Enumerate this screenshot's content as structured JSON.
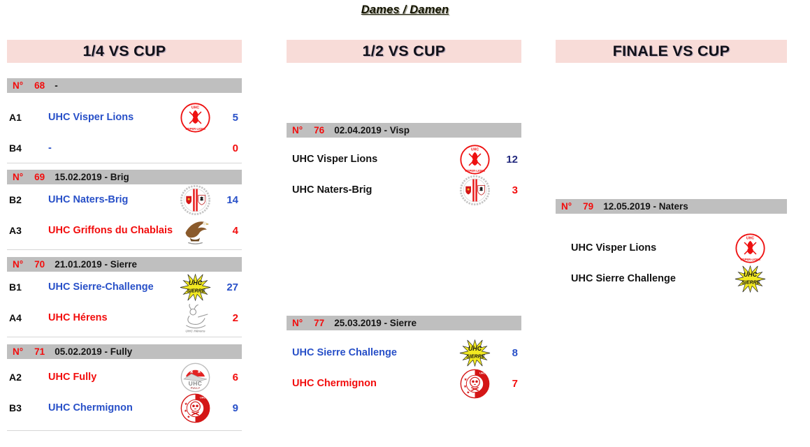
{
  "title": "Dames / Damen",
  "colors": {
    "header_bg": "#f8dcd8",
    "bar_bg": "#bfbfbf",
    "blue": "#2850c8",
    "red": "#f20d0d",
    "navy": "#232a7e"
  },
  "columns": [
    {
      "header": "1/4 VS CUP",
      "matches": [
        {
          "label": "N°",
          "number": "68",
          "info": "-",
          "rows": [
            {
              "seed": "A1",
              "team": "UHC Visper Lions",
              "team_color": "blue",
              "logo": "visper-lions",
              "score": "5",
              "score_color": "blue"
            },
            {
              "seed": "B4",
              "team": "-",
              "team_color": "blue",
              "logo": "",
              "score": "0",
              "score_color": "red"
            }
          ]
        },
        {
          "label": "N°",
          "number": "69",
          "info": "15.02.2019 - Brig",
          "rows": [
            {
              "seed": "B2",
              "team": "UHC Naters-Brig",
              "team_color": "blue",
              "logo": "naters-brig",
              "score": "14",
              "score_color": "blue"
            },
            {
              "seed": "A3",
              "team": "UHC Griffons du Chablais",
              "team_color": "red",
              "logo": "griffons-du-chablais",
              "score": "4",
              "score_color": "red"
            }
          ]
        },
        {
          "label": "N°",
          "number": "70",
          "info": "21.01.2019 - Sierre",
          "rows": [
            {
              "seed": "B1",
              "team": "UHC Sierre-Challenge",
              "team_color": "blue",
              "logo": "sierre-challenge",
              "score": "27",
              "score_color": "blue"
            },
            {
              "seed": "A4",
              "team": "UHC Hérens",
              "team_color": "red",
              "logo": "herens",
              "score": "2",
              "score_color": "red"
            }
          ]
        },
        {
          "label": "N°",
          "number": "71",
          "info": "05.02.2019 - Fully",
          "rows": [
            {
              "seed": "A2",
              "team": "UHC Fully",
              "team_color": "red",
              "logo": "fully",
              "score": "6",
              "score_color": "red"
            },
            {
              "seed": "B3",
              "team": "UHC Chermignon",
              "team_color": "blue",
              "logo": "chermignon",
              "score": "9",
              "score_color": "blue"
            }
          ]
        }
      ]
    },
    {
      "header": "1/2 VS CUP",
      "matches": [
        {
          "label": "N°",
          "number": "76",
          "info": "02.04.2019 - Visp",
          "rows": [
            {
              "seed": "",
              "team": "UHC Visper Lions",
              "team_color": "black",
              "logo": "visper-lions",
              "score": "12",
              "score_color": "navy"
            },
            {
              "seed": "",
              "team": "UHC Naters-Brig",
              "team_color": "black",
              "logo": "naters-brig",
              "score": "3",
              "score_color": "red"
            }
          ]
        },
        {
          "label": "N°",
          "number": "77",
          "info": "25.03.2019 - Sierre",
          "rows": [
            {
              "seed": "",
              "team": "UHC Sierre Challenge",
              "team_color": "blue",
              "logo": "sierre-challenge",
              "score": "8",
              "score_color": "blue"
            },
            {
              "seed": "",
              "team": "UHC Chermignon",
              "team_color": "red",
              "logo": "chermignon",
              "score": "7",
              "score_color": "red"
            }
          ]
        }
      ]
    },
    {
      "header": "FINALE VS CUP",
      "matches": [
        {
          "label": "N°",
          "number": "79",
          "info": "12.05.2019 - Naters",
          "rows": [
            {
              "seed": "",
              "team": "UHC Visper Lions",
              "team_color": "black",
              "logo": "visper-lions",
              "score": "",
              "score_color": "black"
            },
            {
              "seed": "",
              "team": "UHC Sierre Challenge",
              "team_color": "black",
              "logo": "sierre-challenge",
              "score": "",
              "score_color": "black"
            }
          ]
        }
      ]
    }
  ]
}
